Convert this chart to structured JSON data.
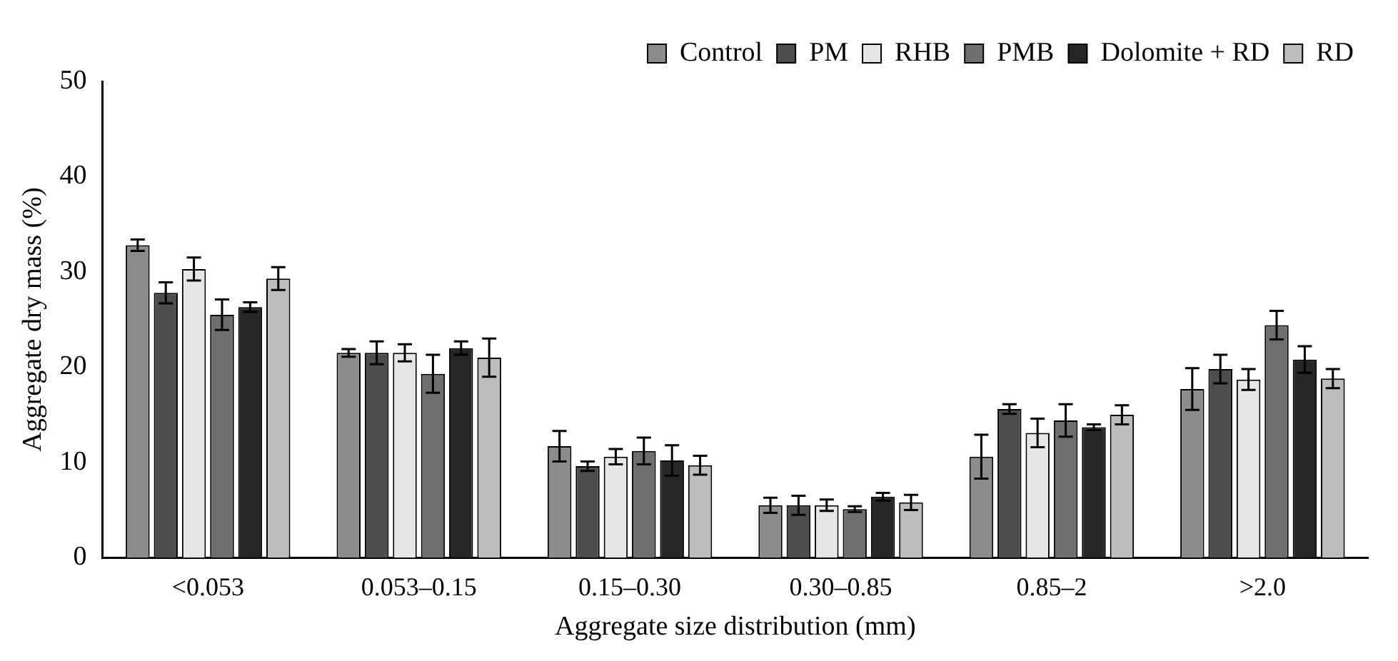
{
  "chart_data": {
    "type": "bar",
    "xlabel": "Aggregate size distribution (mm)",
    "ylabel": "Aggregate dry mass (%)",
    "categories": [
      "<0.053",
      "0.053–0.15",
      "0.15–0.30",
      "0.30–0.85",
      "0.85–2",
      ">2.0"
    ],
    "series": [
      {
        "name": "Control",
        "color": "#8c8c8c",
        "values": [
          32.8,
          21.5,
          11.7,
          5.5,
          10.6,
          17.7
        ],
        "errors": [
          0.6,
          0.4,
          1.6,
          0.8,
          2.3,
          2.2
        ]
      },
      {
        "name": "PM",
        "color": "#4d4d4d",
        "values": [
          27.8,
          21.5,
          9.6,
          5.5,
          15.6,
          19.8
        ],
        "errors": [
          1.1,
          1.2,
          0.5,
          1.0,
          0.5,
          1.5
        ]
      },
      {
        "name": "RHB",
        "color": "#e6e6e6",
        "values": [
          30.3,
          21.5,
          10.6,
          5.5,
          13.1,
          18.7
        ],
        "errors": [
          1.2,
          0.9,
          0.8,
          0.6,
          1.5,
          1.1
        ]
      },
      {
        "name": "PMB",
        "color": "#6e6e6e",
        "values": [
          25.5,
          19.3,
          11.2,
          5.1,
          14.4,
          24.4
        ],
        "errors": [
          1.6,
          2.0,
          1.4,
          0.3,
          1.7,
          1.5
        ]
      },
      {
        "name": "Dolomite + RD",
        "color": "#262626",
        "values": [
          26.3,
          22.0,
          10.2,
          6.4,
          13.7,
          20.8
        ],
        "errors": [
          0.5,
          0.7,
          1.6,
          0.4,
          0.3,
          1.4
        ]
      },
      {
        "name": "RD",
        "color": "#bdbdbd",
        "values": [
          29.3,
          21.0,
          9.7,
          5.8,
          15.0,
          18.8
        ],
        "errors": [
          1.2,
          2.0,
          1.0,
          0.8,
          1.0,
          1.0
        ]
      }
    ],
    "ylim": [
      0,
      50
    ],
    "yticks": [
      0,
      10,
      20,
      30,
      40,
      50
    ],
    "grid": false,
    "legend": "top right"
  }
}
